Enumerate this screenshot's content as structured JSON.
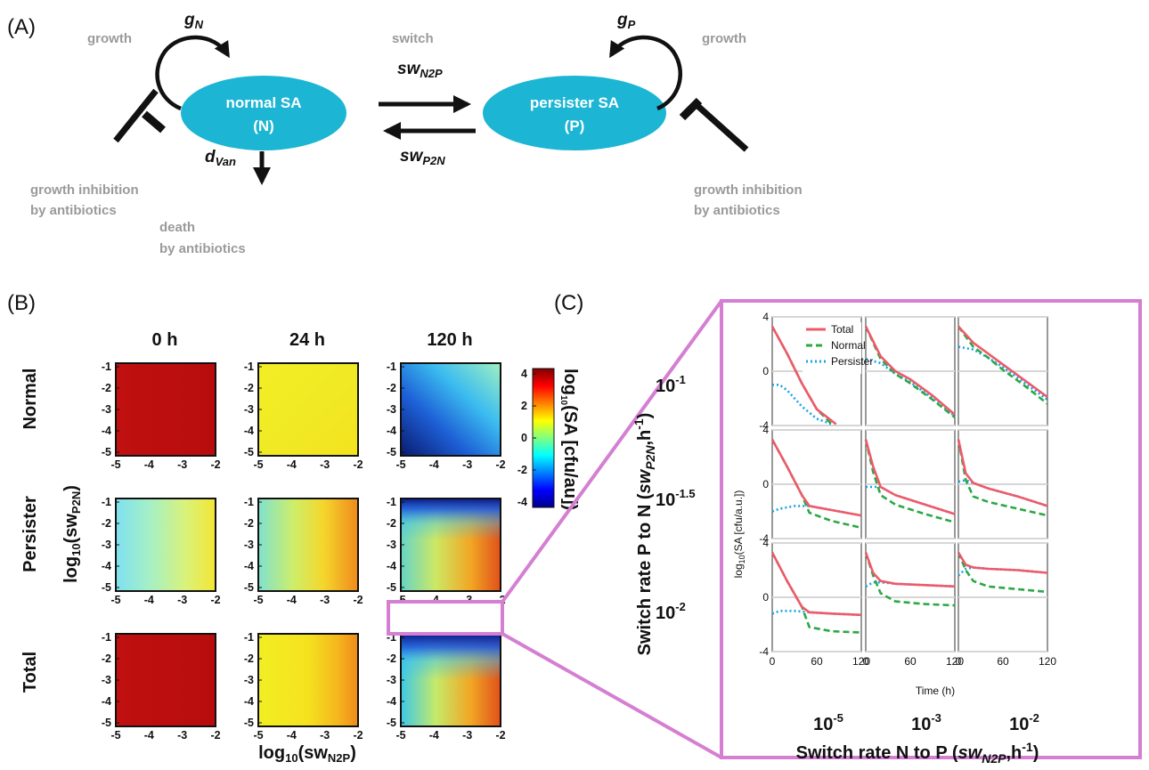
{
  "panel_labels": {
    "a": "(A)",
    "b": "(B)",
    "c": "(C)"
  },
  "diagram": {
    "normal_cell": {
      "line1": "normal SA",
      "line2": "(N)"
    },
    "persister_cell": {
      "line1": "persister SA",
      "line2": "(P)"
    },
    "growth_left": "growth",
    "growth_right": "growth",
    "switch": "switch",
    "gN": {
      "base": "g",
      "sub": "N"
    },
    "gP": {
      "base": "g",
      "sub": "P"
    },
    "swN2P": {
      "base": "sw",
      "sub": "N2P"
    },
    "swP2N": {
      "base": "sw",
      "sub": "P2N"
    },
    "dVan": {
      "base": "d",
      "sub": "Van"
    },
    "inhibition_left": {
      "line1": "growth inhibition",
      "line2": "by antibiotics"
    },
    "inhibition_right": {
      "line1": "growth inhibition",
      "line2": "by antibiotics"
    },
    "death": {
      "line1": "death",
      "line2": "by antibiotics"
    },
    "ellipse_color": "#1cb5d3"
  },
  "heatmaps": {
    "columns": [
      "0 h",
      "24 h",
      "120 h"
    ],
    "rows": [
      "Normal",
      "Persister",
      "Total"
    ],
    "x_ticks": [
      "-5",
      "-4",
      "-3",
      "-2"
    ],
    "y_ticks": [
      "-1",
      "-2",
      "-3",
      "-4",
      "-5"
    ],
    "x_label": {
      "prefix": "log",
      "sub": "10",
      "body": "(sw",
      "sub2": "N2P",
      "end": ")"
    },
    "y_label": {
      "prefix": "log",
      "sub": "10",
      "body": "(sw",
      "sub2": "P2N",
      "end": ")"
    },
    "colorbar": {
      "ticks": [
        "4",
        "2",
        "0",
        "-2",
        "-4"
      ],
      "label": {
        "prefix": "log",
        "sub": "10",
        "body": "(SA [cfu/au])"
      },
      "range": [
        -4,
        4
      ],
      "colormap": "jet"
    }
  },
  "panel_c": {
    "col_labels": [
      {
        "base": "10",
        "exp": "-5"
      },
      {
        "base": "10",
        "exp": "-3"
      },
      {
        "base": "10",
        "exp": "-2"
      }
    ],
    "row_labels": [
      {
        "base": "10",
        "exp": "-1"
      },
      {
        "base": "10",
        "exp": "-1.5"
      },
      {
        "base": "10",
        "exp": "-2"
      }
    ],
    "x_axis_title": {
      "text": "Switch rate N to P (",
      "italic": "sw",
      "sub": "N2P",
      "end": ",h",
      "sup": "-1",
      "close": ")"
    },
    "y_axis_title": {
      "text": "Switch rate P to N (",
      "italic": "sw",
      "sub": "P2N",
      "end": ",h",
      "sup": "-1",
      "close": ")"
    },
    "inner_x_label": "Time (h)",
    "inner_y_label": {
      "prefix": "log",
      "sub": "10",
      "body": "(SA [cfu/a.u.])"
    },
    "x_ticks": [
      "0",
      "60",
      "120"
    ],
    "y_ticks": [
      "4",
      "0",
      "-4"
    ],
    "legend": [
      "Total",
      "Normal",
      "Persister"
    ],
    "frame_color": "#d57fd2"
  },
  "chart_data": {
    "type": "line",
    "x_range": [
      0,
      120
    ],
    "y_range": [
      -4,
      4
    ],
    "series_colors": {
      "Total": "#ee5a6a",
      "Normal": "#2ca845",
      "Persister": "#1aa3e6"
    },
    "panels": [
      {
        "Total": [
          [
            0,
            3.3
          ],
          [
            20,
            1.3
          ],
          [
            40,
            -0.9
          ],
          [
            60,
            -2.8
          ],
          [
            86,
            -3.9
          ]
        ],
        "Normal": [
          [
            0,
            3.3
          ],
          [
            20,
            1.3
          ],
          [
            40,
            -0.9
          ],
          [
            60,
            -2.8
          ],
          [
            80,
            -3.9
          ]
        ],
        "Persister": [
          [
            0,
            -1
          ],
          [
            10,
            -1
          ],
          [
            20,
            -1.4
          ],
          [
            40,
            -2.6
          ],
          [
            60,
            -3.5
          ],
          [
            80,
            -3.9
          ]
        ]
      },
      {
        "Total": [
          [
            0,
            3.3
          ],
          [
            20,
            1.1
          ],
          [
            40,
            0
          ],
          [
            60,
            -0.6
          ],
          [
            90,
            -1.8
          ],
          [
            120,
            -3.2
          ]
        ],
        "Normal": [
          [
            0,
            3.3
          ],
          [
            20,
            0.9
          ],
          [
            40,
            -0.2
          ],
          [
            60,
            -0.9
          ],
          [
            90,
            -2.1
          ],
          [
            120,
            -3.4
          ]
        ],
        "Persister": [
          [
            0,
            0.9
          ],
          [
            20,
            0.6
          ],
          [
            40,
            -0.2
          ],
          [
            60,
            -0.8
          ],
          [
            90,
            -2
          ],
          [
            120,
            -3.3
          ]
        ]
      },
      {
        "Total": [
          [
            0,
            3.3
          ],
          [
            20,
            2.1
          ],
          [
            40,
            1.3
          ],
          [
            60,
            0.5
          ],
          [
            90,
            -0.7
          ],
          [
            120,
            -1.9
          ]
        ],
        "Normal": [
          [
            0,
            3.3
          ],
          [
            20,
            1.8
          ],
          [
            40,
            1
          ],
          [
            60,
            0.1
          ],
          [
            90,
            -1.1
          ],
          [
            120,
            -2.4
          ]
        ],
        "Persister": [
          [
            0,
            1.8
          ],
          [
            20,
            1.6
          ],
          [
            40,
            1
          ],
          [
            60,
            0.3
          ],
          [
            90,
            -0.9
          ],
          [
            120,
            -2.1
          ]
        ]
      },
      {
        "Total": [
          [
            0,
            3.3
          ],
          [
            20,
            1.3
          ],
          [
            40,
            -0.8
          ],
          [
            50,
            -1.6
          ],
          [
            80,
            -1.9
          ],
          [
            120,
            -2.3
          ]
        ],
        "Normal": [
          [
            0,
            3.3
          ],
          [
            20,
            1.3
          ],
          [
            40,
            -0.8
          ],
          [
            50,
            -2.1
          ],
          [
            80,
            -2.7
          ],
          [
            120,
            -3.2
          ]
        ],
        "Persister": [
          [
            0,
            -2
          ],
          [
            10,
            -1.8
          ],
          [
            30,
            -1.6
          ],
          [
            50,
            -1.6
          ],
          [
            80,
            -1.9
          ],
          [
            120,
            -2.3
          ]
        ]
      },
      {
        "Total": [
          [
            0,
            3.3
          ],
          [
            10,
            1.3
          ],
          [
            20,
            -0.2
          ],
          [
            40,
            -0.8
          ],
          [
            80,
            -1.5
          ],
          [
            120,
            -2.2
          ]
        ],
        "Normal": [
          [
            0,
            3.3
          ],
          [
            10,
            0.9
          ],
          [
            20,
            -0.8
          ],
          [
            40,
            -1.5
          ],
          [
            80,
            -2.2
          ],
          [
            120,
            -2.8
          ]
        ],
        "Persister": [
          [
            0,
            -0.2
          ],
          [
            10,
            -0.2
          ],
          [
            20,
            -0.2
          ],
          [
            40,
            -0.8
          ],
          [
            80,
            -1.5
          ],
          [
            120,
            -2.2
          ]
        ]
      },
      {
        "Total": [
          [
            0,
            3.3
          ],
          [
            10,
            0.8
          ],
          [
            20,
            0.1
          ],
          [
            40,
            -0.3
          ],
          [
            80,
            -0.9
          ],
          [
            120,
            -1.6
          ]
        ],
        "Normal": [
          [
            0,
            3.3
          ],
          [
            10,
            0.3
          ],
          [
            20,
            -0.9
          ],
          [
            40,
            -1.3
          ],
          [
            80,
            -1.8
          ],
          [
            120,
            -2.3
          ]
        ],
        "Persister": [
          [
            0,
            0.2
          ],
          [
            10,
            0.3
          ],
          [
            20,
            0.1
          ],
          [
            40,
            -0.3
          ],
          [
            80,
            -0.9
          ],
          [
            120,
            -1.6
          ]
        ]
      },
      {
        "Total": [
          [
            0,
            3.3
          ],
          [
            20,
            1.2
          ],
          [
            40,
            -0.7
          ],
          [
            50,
            -1.1
          ],
          [
            80,
            -1.2
          ],
          [
            120,
            -1.3
          ]
        ],
        "Normal": [
          [
            0,
            3.3
          ],
          [
            20,
            1.2
          ],
          [
            40,
            -0.7
          ],
          [
            50,
            -2.2
          ],
          [
            80,
            -2.5
          ],
          [
            120,
            -2.6
          ]
        ],
        "Persister": [
          [
            0,
            -1.2
          ],
          [
            10,
            -1
          ],
          [
            30,
            -1
          ],
          [
            50,
            -1.1
          ],
          [
            80,
            -1.2
          ],
          [
            120,
            -1.3
          ]
        ]
      },
      {
        "Total": [
          [
            0,
            3.3
          ],
          [
            10,
            1.8
          ],
          [
            20,
            1.2
          ],
          [
            40,
            1
          ],
          [
            80,
            0.9
          ],
          [
            120,
            0.8
          ]
        ],
        "Normal": [
          [
            0,
            3.3
          ],
          [
            10,
            1.6
          ],
          [
            20,
            0.3
          ],
          [
            40,
            -0.3
          ],
          [
            80,
            -0.5
          ],
          [
            120,
            -0.6
          ]
        ],
        "Persister": [
          [
            0,
            0.8
          ],
          [
            10,
            1.1
          ],
          [
            20,
            1.1
          ],
          [
            40,
            1
          ],
          [
            80,
            0.9
          ],
          [
            120,
            0.8
          ]
        ]
      },
      {
        "Total": [
          [
            0,
            3.3
          ],
          [
            10,
            2.4
          ],
          [
            20,
            2.2
          ],
          [
            40,
            2.1
          ],
          [
            80,
            2
          ],
          [
            120,
            1.8
          ]
        ],
        "Normal": [
          [
            0,
            3.3
          ],
          [
            10,
            2
          ],
          [
            20,
            1.2
          ],
          [
            40,
            0.8
          ],
          [
            80,
            0.6
          ],
          [
            120,
            0.4
          ]
        ],
        "Persister": [
          [
            0,
            1.6
          ],
          [
            10,
            2.1
          ],
          [
            20,
            2.2
          ],
          [
            40,
            2.1
          ],
          [
            80,
            2
          ],
          [
            120,
            1.8
          ]
        ]
      }
    ]
  }
}
